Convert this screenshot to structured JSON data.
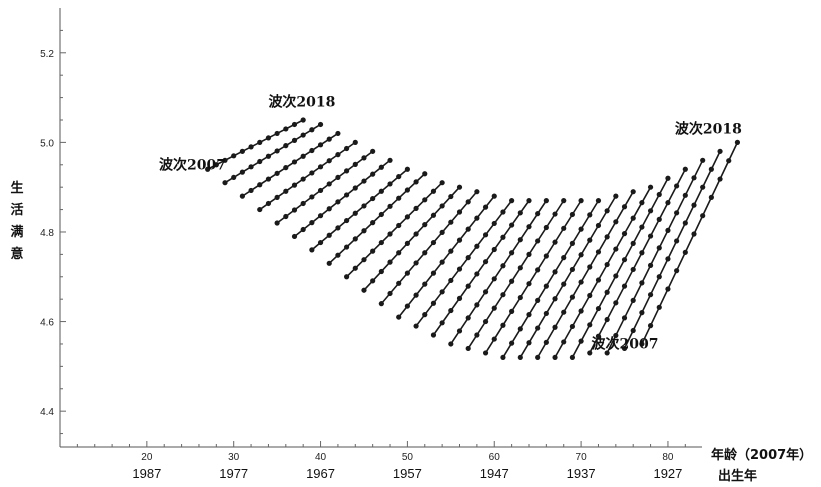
{
  "chart_data": {
    "type": "line",
    "title": "",
    "xlabel": "年龄（2007年）",
    "xlabel2": "出生年",
    "ylabel": "生活满意",
    "xlim": [
      10,
      83
    ],
    "ylim": [
      4.32,
      5.3
    ],
    "x_ticks": [
      20,
      30,
      40,
      50,
      60,
      70,
      80
    ],
    "birth_year_ticks": [
      "1987",
      "1977",
      "1967",
      "1957",
      "1947",
      "1937",
      "1927"
    ],
    "y_ticks": [
      4.4,
      4.6,
      4.8,
      5.0,
      5.2
    ],
    "y_tick_labels": [
      "4.4",
      "4.6",
      "4.8",
      "5.0",
      "5.2"
    ],
    "grid": false,
    "annotations": [
      {
        "text": "波次2007",
        "x": 21.4,
        "y": 4.94
      },
      {
        "text": "波次2018",
        "x": 34.0,
        "y": 5.08
      },
      {
        "text": "波次2018",
        "x": 80.8,
        "y": 5.02
      },
      {
        "text": "波次2007",
        "x": 71.2,
        "y": 4.54
      }
    ],
    "cohorts": [
      {
        "start_age": 27,
        "start": 4.94,
        "end": 5.05
      },
      {
        "start_age": 29,
        "start": 4.91,
        "end": 5.04
      },
      {
        "start_age": 31,
        "start": 4.88,
        "end": 5.02
      },
      {
        "start_age": 33,
        "start": 4.85,
        "end": 5.0
      },
      {
        "start_age": 35,
        "start": 4.82,
        "end": 4.98
      },
      {
        "start_age": 37,
        "start": 4.79,
        "end": 4.96
      },
      {
        "start_age": 39,
        "start": 4.76,
        "end": 4.94
      },
      {
        "start_age": 41,
        "start": 4.73,
        "end": 4.93
      },
      {
        "start_age": 43,
        "start": 4.7,
        "end": 4.91
      },
      {
        "start_age": 45,
        "start": 4.67,
        "end": 4.9
      },
      {
        "start_age": 47,
        "start": 4.64,
        "end": 4.89
      },
      {
        "start_age": 49,
        "start": 4.61,
        "end": 4.88
      },
      {
        "start_age": 51,
        "start": 4.59,
        "end": 4.87
      },
      {
        "start_age": 53,
        "start": 4.57,
        "end": 4.87
      },
      {
        "start_age": 55,
        "start": 4.55,
        "end": 4.87
      },
      {
        "start_age": 57,
        "start": 4.54,
        "end": 4.87
      },
      {
        "start_age": 59,
        "start": 4.53,
        "end": 4.87
      },
      {
        "start_age": 61,
        "start": 4.52,
        "end": 4.87
      },
      {
        "start_age": 63,
        "start": 4.52,
        "end": 4.88
      },
      {
        "start_age": 65,
        "start": 4.52,
        "end": 4.89
      },
      {
        "start_age": 67,
        "start": 4.52,
        "end": 4.9
      },
      {
        "start_age": 69,
        "start": 4.52,
        "end": 4.92
      },
      {
        "start_age": 71,
        "start": 4.53,
        "end": 4.94
      },
      {
        "start_age": 73,
        "start": 4.53,
        "end": 4.96
      },
      {
        "start_age": 75,
        "start": 4.54,
        "end": 4.98
      },
      {
        "start_age": 77,
        "start": 4.55,
        "end": 5.0
      }
    ],
    "waves": 12,
    "age_step_per_wave": 1,
    "color": "#1a1a1a"
  }
}
